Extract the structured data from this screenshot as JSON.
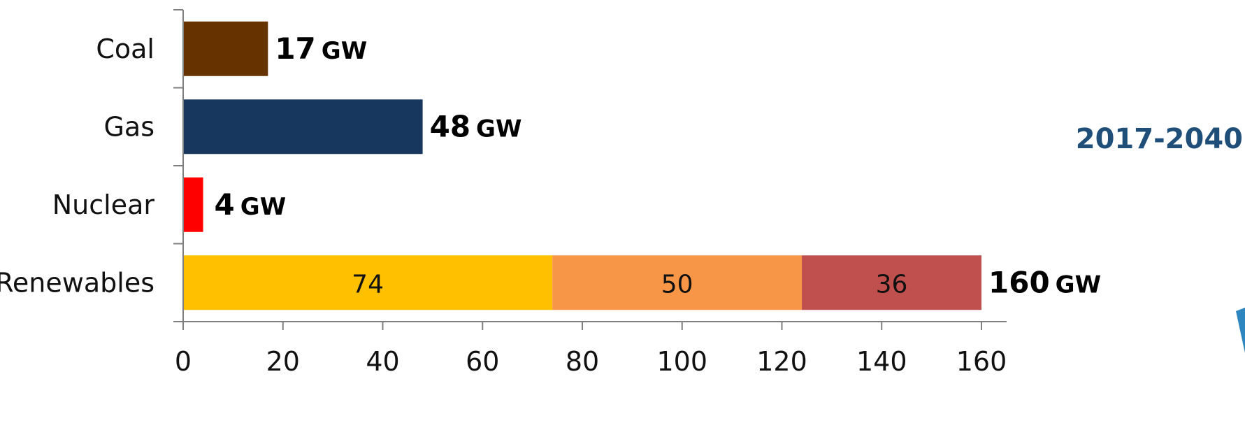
{
  "chart_data": {
    "type": "bar",
    "orientation": "horizontal",
    "stacked": true,
    "title": "",
    "xlabel": "",
    "ylabel": "",
    "annotation": "2017-2040",
    "categories": [
      "Coal",
      "Gas",
      "Nuclear",
      "Renewables"
    ],
    "totals": [
      {
        "value": "17",
        "unit": "GW"
      },
      {
        "value": "48",
        "unit": "GW"
      },
      {
        "value": "4",
        "unit": "GW"
      },
      {
        "value": "160",
        "unit": "GW"
      }
    ],
    "series": [
      {
        "values": [
          17,
          48,
          4,
          74
        ],
        "colors": [
          "#663300",
          "#17375e",
          "#ff0000",
          "#ffc000"
        ]
      },
      {
        "values": [
          0,
          0,
          0,
          50
        ],
        "colors": [
          "#f79646",
          "#f79646",
          "#f79646",
          "#f79646"
        ]
      },
      {
        "values": [
          0,
          0,
          0,
          36
        ],
        "colors": [
          "#c0504d",
          "#c0504d",
          "#c0504d",
          "#c0504d"
        ]
      }
    ],
    "segment_labels": [
      {
        "category": "Renewables",
        "series": 0,
        "text": "74"
      },
      {
        "category": "Renewables",
        "series": 1,
        "text": "50"
      },
      {
        "category": "Renewables",
        "series": 2,
        "text": "36"
      }
    ],
    "xlim": [
      0,
      160
    ],
    "xticks": [
      "0",
      "20",
      "40",
      "60",
      "80",
      "100",
      "120",
      "140",
      "160"
    ],
    "grid": false,
    "legend": "none",
    "colors": {
      "axis": "#7f7f7f",
      "annotation": "#1f4e79"
    }
  }
}
